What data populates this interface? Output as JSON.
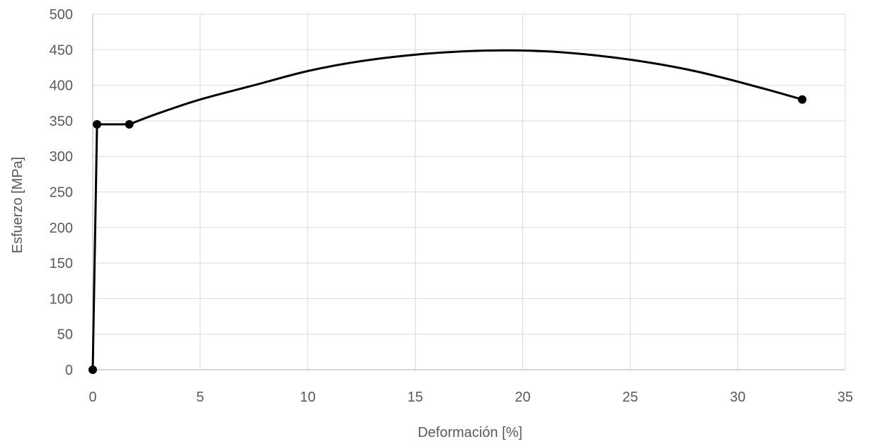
{
  "chart_data": {
    "type": "line",
    "title": "",
    "xlabel": "Deformación [%]",
    "ylabel": "Esfuerzo [MPa]",
    "xlim": [
      0,
      35
    ],
    "ylim": [
      0,
      500
    ],
    "xticks": [
      0,
      5,
      10,
      15,
      20,
      25,
      30,
      35
    ],
    "yticks": [
      0,
      50,
      100,
      150,
      200,
      250,
      300,
      350,
      400,
      450,
      500
    ],
    "grid": true,
    "legend": "none",
    "line_color": "#000000",
    "series": [
      {
        "name": "",
        "points": [
          {
            "x": 0,
            "y": 0
          },
          {
            "x": 0.2,
            "y": 345
          },
          {
            "x": 1.7,
            "y": 345
          },
          {
            "x": 33,
            "y": 380
          }
        ],
        "curve": [
          [
            0,
            0
          ],
          [
            0.2,
            345
          ],
          [
            1.7,
            345
          ],
          [
            3,
            360
          ],
          [
            5,
            380
          ],
          [
            7.5,
            400
          ],
          [
            10,
            420
          ],
          [
            12.5,
            434
          ],
          [
            15,
            443
          ],
          [
            17.5,
            448
          ],
          [
            19.5,
            449
          ],
          [
            22,
            446
          ],
          [
            25,
            436
          ],
          [
            28,
            420
          ],
          [
            31,
            397
          ],
          [
            33,
            380
          ]
        ]
      }
    ]
  }
}
